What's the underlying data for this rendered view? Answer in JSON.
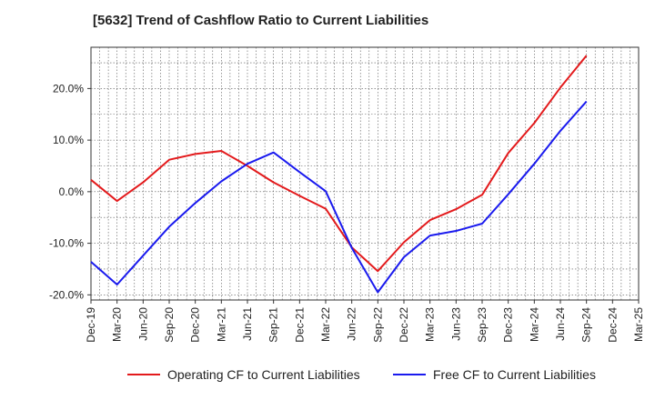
{
  "colors": {
    "operating": "#e31a1c",
    "free": "#1a1aee",
    "grid": "#555555",
    "axis": "#333333"
  },
  "chart_data": {
    "type": "line",
    "title": "[5632]  Trend of Cashflow Ratio to Current Liabilities",
    "xlabel": "",
    "ylabel": "",
    "categories": [
      "Dec-19",
      "Mar-20",
      "Jun-20",
      "Sep-20",
      "Dec-20",
      "Mar-21",
      "Jun-21",
      "Sep-21",
      "Dec-21",
      "Mar-22",
      "Jun-22",
      "Sep-22",
      "Dec-22",
      "Mar-23",
      "Jun-23",
      "Sep-23",
      "Dec-23",
      "Mar-24",
      "Jun-24",
      "Sep-24",
      "Dec-24",
      "Mar-25"
    ],
    "y_ticks": [
      "20.0%",
      "10.0%",
      "0.0%",
      "-10.0%",
      "-20.0%"
    ],
    "y_tick_values": [
      20,
      10,
      0,
      -10,
      -20
    ],
    "ylim": [
      -21,
      28
    ],
    "grid": true,
    "legend_position": "bottom",
    "series": [
      {
        "name": "Operating CF to Current Liabilities",
        "color_key": "operating",
        "values": [
          2.3,
          -1.8,
          1.8,
          6.2,
          7.3,
          7.9,
          5.0,
          1.8,
          -0.8,
          -3.3,
          -10.8,
          -15.4,
          -9.8,
          -5.5,
          -3.4,
          -0.6,
          7.5,
          13.3,
          20.2,
          26.4,
          null,
          null
        ]
      },
      {
        "name": "Free CF to Current Liabilities",
        "color_key": "free",
        "values": [
          -13.6,
          -18.0,
          -12.4,
          -6.8,
          -2.2,
          2.0,
          5.4,
          7.6,
          3.8,
          0.1,
          -10.9,
          -19.5,
          -12.7,
          -8.5,
          -7.6,
          -6.2,
          -0.5,
          5.4,
          11.8,
          17.5,
          null,
          null
        ]
      }
    ]
  }
}
